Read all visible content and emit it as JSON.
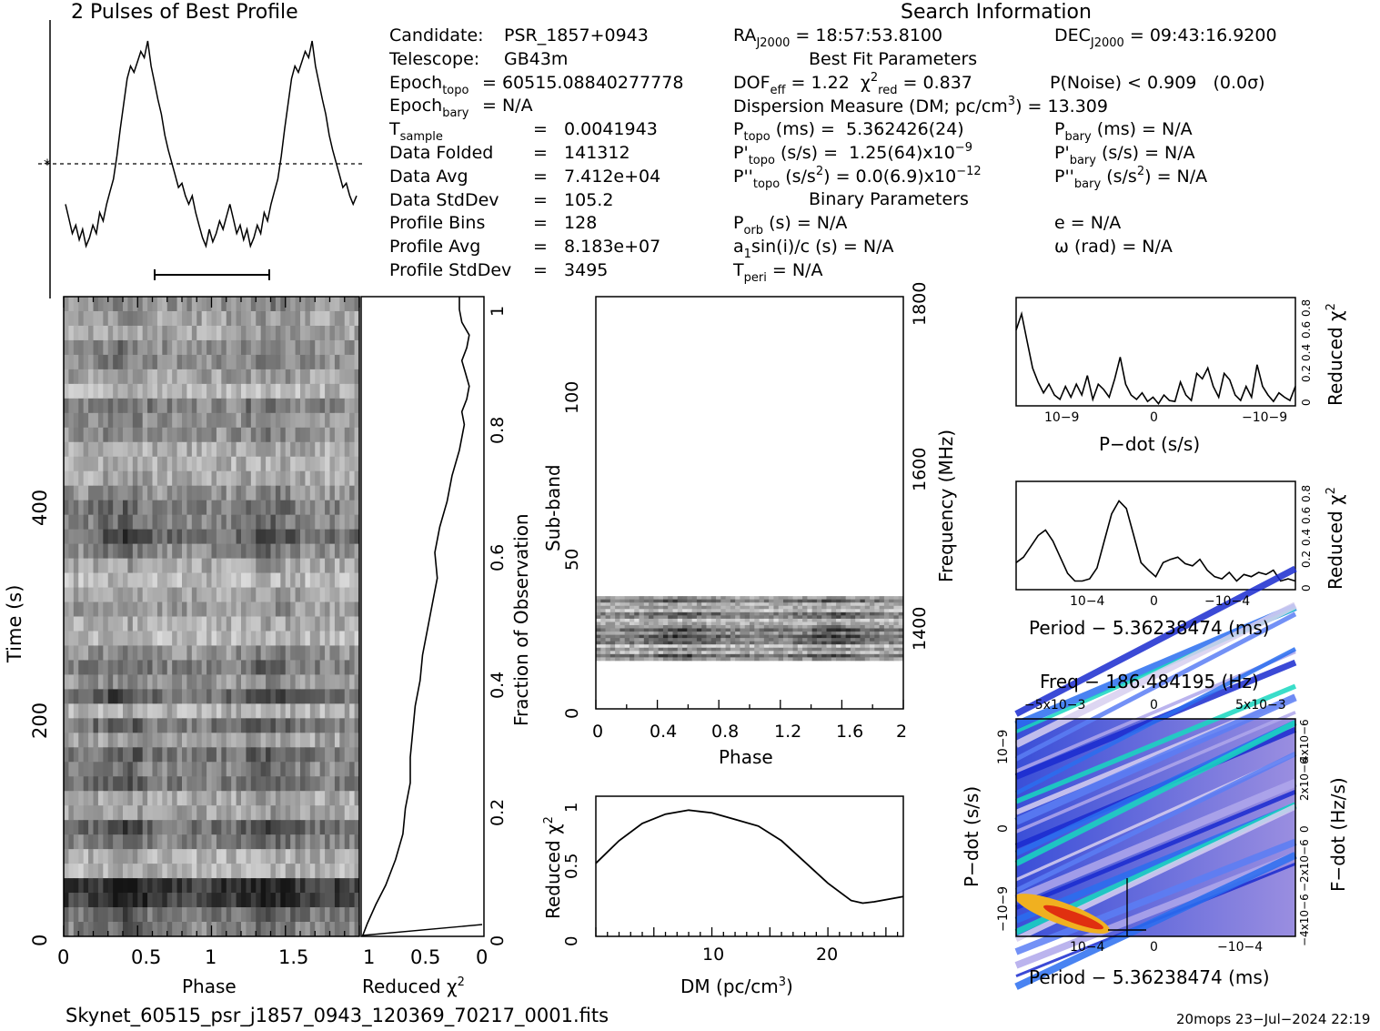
{
  "header": {
    "profile_title": "2 Pulses of Best Profile",
    "search_title": "Search Information",
    "best_fit_title": "Best Fit Parameters",
    "binary_title": "Binary Parameters"
  },
  "info_left": [
    {
      "key": "Candidate:",
      "val": "PSR_1857+0943"
    },
    {
      "key": "Telescope:",
      "val": "GB43m"
    },
    {
      "key": "Epoch",
      "sub": "topo",
      "val": "= 60515.08840277778"
    },
    {
      "key": "Epoch",
      "sub": "bary",
      "val": "= N/A"
    },
    {
      "key": "T",
      "sub": "sample",
      "val": "=   0.0041943"
    },
    {
      "key": "Data Folded",
      "val": "=   141312"
    },
    {
      "key": "Data Avg",
      "val": "=   7.412e+04"
    },
    {
      "key": "Data StdDev",
      "val": "=   105.2"
    },
    {
      "key": "Profile Bins",
      "val": "=   128"
    },
    {
      "key": "Profile Avg",
      "val": "=   8.183e+07"
    },
    {
      "key": "Profile StdDev",
      "val": "=   3495"
    }
  ],
  "info_mid": {
    "ra": "RA",
    "ra_sub": "J2000",
    "ra_val": "= 18:57:53.8100",
    "dec": "DEC",
    "dec_sub": "J2000",
    "dec_val": "= 09:43:16.9200",
    "dof": "DOF",
    "dof_sub": "eff",
    "dof_val": "= 1.22",
    "chi": "χ",
    "chi_sup": "2",
    "chi_sub": "red",
    "chi_val": "= 0.837",
    "pnoise": "P(Noise) < 0.909   (0.0σ)",
    "dm_line": "Dispersion Measure (DM; pc/cm",
    "dm_sup": "3",
    "dm_val": ") = 13.309",
    "ptopo": "P",
    "ptopo_sub": "topo",
    "ptopo_val": "(ms) =  5.362426(24)",
    "pdtopo": "P'",
    "pdtopo_sub": "topo",
    "pdtopo_val": "(s/s) =  1.25(64)x10",
    "pdtopo_exp": "−9",
    "pddtopo": "P''",
    "pddtopo_sub": "topo",
    "pddtopo_val": "(s/s",
    "pddtopo_sup": "2",
    "pddtopo_val2": ") = 0.0(6.9)x10",
    "pddtopo_exp": "−12",
    "pbary": "P",
    "pbary_sub": "bary",
    "pbary_val": "(ms) = N/A",
    "pdbary": "P'",
    "pdbary_sub": "bary",
    "pdbary_val": "(s/s) = N/A",
    "pddbary": "P''",
    "pddbary_sub": "bary",
    "pddbary_val": "(s/s",
    "pddbary_sup": "2",
    "pddbary_val2": ") = N/A",
    "porb": "P",
    "porb_sub": "orb",
    "porb_val": "(s) = N/A",
    "asini": "a",
    "asini_sub": "1",
    "asini_val": "sin(i)/c (s) = N/A",
    "tperi": "T",
    "tperi_sub": "peri",
    "tperi_val": "= N/A",
    "ecc": "e = N/A",
    "omega": "ω (rad) = N/A"
  },
  "footer": {
    "filename": "Skynet_60515_psr_j1857_0943_120369_70217_0001.fits",
    "stamp": "20mops 23−Jul−2024 22:19"
  },
  "colors": {
    "ink": "#000000",
    "background": "#ffffff"
  },
  "chart_data": [
    {
      "id": "profile",
      "type": "line",
      "title": "2 Pulses of Best Profile",
      "x_range": [
        0,
        2
      ],
      "values": [
        0.22,
        0.15,
        0.08,
        0.12,
        0.05,
        0.1,
        0.02,
        0.06,
        0.12,
        0.08,
        0.18,
        0.14,
        0.22,
        0.28,
        0.34,
        0.45,
        0.58,
        0.7,
        0.82,
        0.88,
        0.85,
        0.9,
        0.95,
        0.92,
        1.0,
        0.88,
        0.8,
        0.72,
        0.65,
        0.55,
        0.48,
        0.42,
        0.36,
        0.3,
        0.32,
        0.26,
        0.22,
        0.26,
        0.18,
        0.12,
        0.06,
        0.02,
        0.1,
        0.04,
        0.08,
        0.14,
        0.1,
        0.16,
        0.22,
        0.15,
        0.08,
        0.12,
        0.05,
        0.1,
        0.02,
        0.06,
        0.12,
        0.08,
        0.18,
        0.14,
        0.22,
        0.28,
        0.34,
        0.45,
        0.58,
        0.7,
        0.82,
        0.88,
        0.85,
        0.9,
        0.95,
        0.92,
        1.0,
        0.88,
        0.8,
        0.72,
        0.65,
        0.55,
        0.48,
        0.42,
        0.36,
        0.3,
        0.32,
        0.26,
        0.22,
        0.26
      ],
      "mean_line": true
    },
    {
      "id": "time_phase",
      "type": "heatmap",
      "xlabel": "Phase",
      "ylabel": "Time (s)",
      "x_ticks": [
        "0",
        "0.5",
        "1",
        "1.5"
      ],
      "y_ticks": [
        "0",
        "200",
        "400"
      ],
      "x_range": [
        0,
        2
      ],
      "y_range": [
        0,
        660
      ]
    },
    {
      "id": "time_chi",
      "type": "line",
      "xlabel": "Reduced χ",
      "xlabel_sup": "2",
      "ylabel": "Fraction of Observation",
      "x_ticks": [
        "1",
        "0.5",
        "0"
      ],
      "y_ticks": [
        "0",
        "0.2",
        "0.4",
        "0.6",
        "0.8",
        "1"
      ],
      "x": [
        0.99,
        0.95,
        0.88,
        0.8,
        0.72,
        0.66,
        0.64,
        0.6,
        0.6,
        0.58,
        0.56,
        0.52,
        0.5,
        0.46,
        0.42,
        0.38,
        0.4,
        0.36,
        0.3,
        0.26,
        0.2,
        0.16,
        0.18,
        0.14,
        0.12,
        0.15,
        0.18,
        0.14,
        0.12,
        0.18,
        0.2,
        0.2
      ],
      "y": [
        0.0,
        0.02,
        0.05,
        0.08,
        0.12,
        0.16,
        0.2,
        0.24,
        0.28,
        0.32,
        0.36,
        0.4,
        0.44,
        0.48,
        0.52,
        0.56,
        0.6,
        0.64,
        0.68,
        0.72,
        0.76,
        0.8,
        0.82,
        0.84,
        0.86,
        0.88,
        0.9,
        0.92,
        0.94,
        0.96,
        0.98,
        1.0
      ]
    },
    {
      "id": "subband",
      "type": "heatmap",
      "xlabel": "Phase",
      "ylabel": "Sub-band",
      "ylabel_right": "Frequency (MHz)",
      "x_ticks": [
        "0",
        "0.4",
        "0.8",
        "1.2",
        "1.6",
        "2"
      ],
      "y_ticks": [
        "0",
        "50",
        "100"
      ],
      "y2_ticks": [
        "1400",
        "1600",
        "1800"
      ],
      "band_range": [
        15,
        35
      ]
    },
    {
      "id": "dm_chi",
      "type": "line",
      "xlabel": "DM (pc/cm",
      "xlabel_sup": "3",
      "xlabel_end": ")",
      "ylabel": "Reduced χ",
      "ylabel_sup": "2",
      "x_ticks": [
        "10",
        "20"
      ],
      "y_ticks": [
        "0",
        "0.5",
        "1"
      ],
      "x": [
        0,
        2,
        4,
        6,
        8,
        9,
        10,
        12,
        14,
        16,
        18,
        20,
        22,
        23,
        24,
        26.5
      ],
      "y": [
        0.55,
        0.72,
        0.85,
        0.92,
        0.95,
        0.94,
        0.93,
        0.88,
        0.83,
        0.72,
        0.56,
        0.4,
        0.27,
        0.25,
        0.26,
        0.3
      ]
    },
    {
      "id": "pdot_chi",
      "type": "line",
      "xlabel": "P−dot (s/s)",
      "ylabel": "Reduced χ",
      "ylabel_sup": "2",
      "x_ticks": [
        "10−9",
        "0",
        "−10−9"
      ],
      "y_ticks": [
        "0",
        "0.2",
        "0.4",
        "0.6",
        "0.8"
      ],
      "values": [
        0.7,
        0.85,
        0.6,
        0.35,
        0.22,
        0.12,
        0.2,
        0.1,
        0.06,
        0.18,
        0.08,
        0.2,
        0.1,
        0.28,
        0.06,
        0.2,
        0.15,
        0.08,
        0.25,
        0.45,
        0.2,
        0.1,
        0.06,
        0.12,
        0.04,
        0.08,
        0.02,
        0.1,
        0.05,
        0.04,
        0.22,
        0.1,
        0.05,
        0.3,
        0.25,
        0.35,
        0.18,
        0.08,
        0.3,
        0.24,
        0.1,
        0.05,
        0.18,
        0.08,
        0.38,
        0.18,
        0.1,
        0.04,
        0.12,
        0.08,
        0.05,
        0.18
      ]
    },
    {
      "id": "period_chi",
      "type": "line",
      "xlabel": "Period − 5.36238474 (ms)",
      "ylabel": "Reduced χ",
      "ylabel_sup": "2",
      "x_ticks": [
        "10−4",
        "0",
        "−10−4"
      ],
      "y_ticks": [
        "0",
        "0.2",
        "0.4",
        "0.6",
        "0.8"
      ],
      "values": [
        0.25,
        0.3,
        0.4,
        0.5,
        0.55,
        0.45,
        0.3,
        0.15,
        0.08,
        0.08,
        0.1,
        0.2,
        0.45,
        0.7,
        0.82,
        0.75,
        0.5,
        0.25,
        0.18,
        0.12,
        0.25,
        0.28,
        0.3,
        0.24,
        0.22,
        0.28,
        0.18,
        0.12,
        0.1,
        0.16,
        0.08,
        0.14,
        0.12,
        0.16,
        0.14,
        0.18,
        0.08,
        0.1,
        0.08
      ]
    },
    {
      "id": "p_pdot",
      "type": "heatmap",
      "title": "Freq − 186.484195 (Hz)",
      "xlabel": "Period − 5.36238474 (ms)",
      "ylabel": "P−dot (s/s)",
      "ylabel_right": "F−dot (Hz/s)",
      "x_ticks": [
        "10−4",
        "0",
        "−10−4"
      ],
      "x2_ticks": [
        "−5x10−3",
        "0",
        "5x10−3"
      ],
      "y_ticks": [
        "10−9",
        "0",
        "−10−9"
      ],
      "y2_ticks": [
        "−4x10−6",
        "−2x10−6",
        "0",
        "2x10−6",
        "4x10−6"
      ]
    }
  ]
}
